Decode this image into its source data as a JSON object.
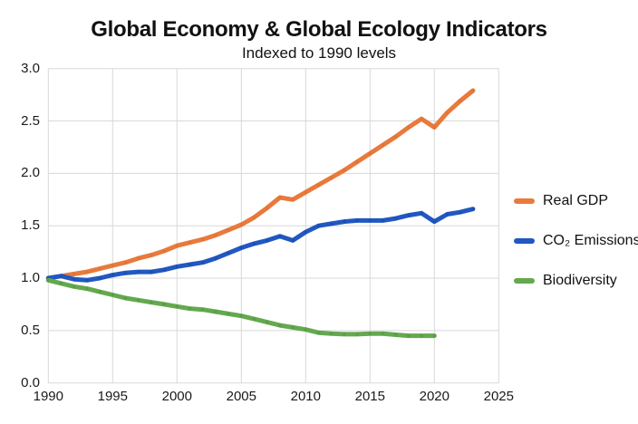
{
  "header": {
    "title": "Global Economy & Global Ecology Indicators",
    "subtitle": "Indexed to 1990 levels"
  },
  "colors": {
    "gridline": "#d8d8d8",
    "text": "#1a1a1a",
    "background": "#ffffff"
  },
  "chart_data": {
    "type": "line",
    "title": "Global Economy & Global Ecology Indicators",
    "subtitle": "Indexed to 1990 levels",
    "xlabel": "",
    "ylabel": "",
    "xlim": [
      1990,
      2025
    ],
    "ylim": [
      0.0,
      3.0
    ],
    "grid": true,
    "legend_position": "right",
    "xticks": [
      "1990",
      "1995",
      "2000",
      "2005",
      "2010",
      "2015",
      "2020",
      "2025"
    ],
    "yticks": [
      "0.0",
      "0.5",
      "1.0",
      "1.5",
      "2.0",
      "2.5",
      "3.0"
    ],
    "series": [
      {
        "name": "Real GDP",
        "color": "#E87A3C",
        "marker_color": "#D96C2E",
        "start_year": 1990,
        "values": [
          1.0,
          1.02,
          1.04,
          1.06,
          1.09,
          1.12,
          1.15,
          1.19,
          1.22,
          1.26,
          1.31,
          1.34,
          1.37,
          1.41,
          1.46,
          1.51,
          1.58,
          1.67,
          1.77,
          1.75,
          1.82,
          1.89,
          1.96,
          2.03,
          2.11,
          2.19,
          2.27,
          2.35,
          2.44,
          2.52,
          2.44,
          2.58,
          2.69,
          2.79
        ]
      },
      {
        "name": "CO₂ Emissions",
        "color": "#2158C2",
        "marker_color": "#18459E",
        "start_year": 1990,
        "values": [
          1.0,
          1.02,
          0.99,
          0.98,
          1.0,
          1.03,
          1.05,
          1.06,
          1.06,
          1.08,
          1.11,
          1.13,
          1.15,
          1.19,
          1.24,
          1.29,
          1.33,
          1.36,
          1.4,
          1.36,
          1.44,
          1.5,
          1.52,
          1.54,
          1.55,
          1.55,
          1.55,
          1.57,
          1.6,
          1.62,
          1.54,
          1.61,
          1.63,
          1.66
        ]
      },
      {
        "name": "Biodiversity",
        "color": "#64A94F",
        "marker_color": "#4E8C3F",
        "start_year": 1990,
        "values": [
          0.98,
          0.95,
          0.92,
          0.9,
          0.87,
          0.84,
          0.81,
          0.79,
          0.77,
          0.75,
          0.73,
          0.71,
          0.7,
          0.68,
          0.66,
          0.64,
          0.61,
          0.58,
          0.55,
          0.53,
          0.51,
          0.48,
          0.47,
          0.465,
          0.465,
          0.47,
          0.47,
          0.46,
          0.45,
          0.45,
          0.45
        ]
      }
    ]
  }
}
